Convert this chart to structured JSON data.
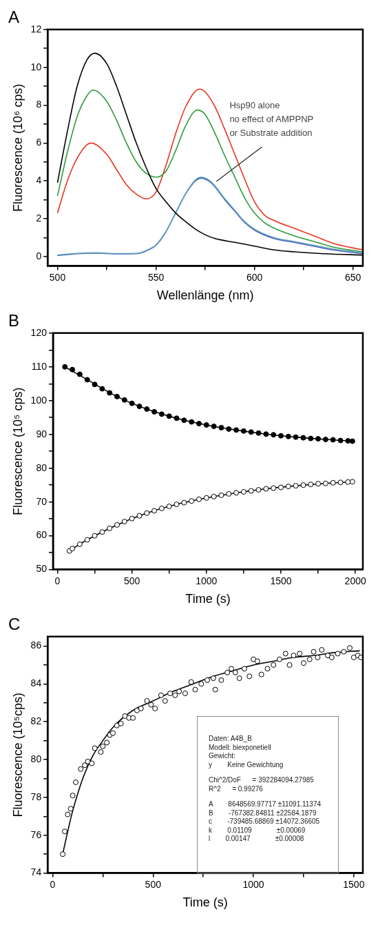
{
  "chart_data": [
    {
      "type": "line",
      "title": "A",
      "xlabel": "Wellenlänge (nm)",
      "ylabel": "Fluorescence (10⁶ cps)",
      "xlim": [
        495,
        655
      ],
      "ylim": [
        -0.5,
        12
      ],
      "xticks": [
        500,
        {
          "value": 525,
          "label": null
        },
        550,
        {
          "value": 575,
          "label": null
        },
        600,
        {
          "value": 625,
          "label": null
        },
        650
      ],
      "yticks": [
        0,
        {
          "value": 1,
          "label": null
        },
        2,
        {
          "value": 3,
          "label": null
        },
        4,
        {
          "value": 5,
          "label": null
        },
        6,
        {
          "value": 7,
          "label": null
        },
        8,
        {
          "value": 9,
          "label": null
        },
        10,
        {
          "value": 11,
          "label": null
        },
        12
      ],
      "grid": false,
      "legend": false,
      "annotations": [
        {
          "text": "Hsp90 alone\nno effect of AMPPNP\nor Substrate addition",
          "x": 580,
          "y": 3.9
        }
      ],
      "series": [
        {
          "color": "#000000",
          "x": [
            500,
            505,
            510,
            515,
            519,
            525,
            530,
            535,
            540,
            545,
            550,
            555,
            560,
            565,
            570,
            575,
            580,
            590,
            600,
            610,
            620,
            635,
            655
          ],
          "values": [
            3.9,
            6.6,
            9.0,
            10.4,
            10.75,
            10.2,
            9.0,
            7.5,
            6.0,
            4.7,
            3.6,
            2.9,
            2.3,
            1.85,
            1.45,
            1.15,
            0.95,
            0.75,
            0.55,
            0.35,
            0.25,
            0.15,
            0.08
          ]
        },
        {
          "color": "#2e9a3a",
          "x": [
            500,
            505,
            510,
            515,
            518,
            525,
            530,
            535,
            540,
            545,
            550,
            555,
            560,
            565,
            571,
            575,
            580,
            585,
            590,
            595,
            600,
            605,
            610,
            620,
            630,
            640,
            655
          ],
          "values": [
            3.2,
            5.5,
            7.4,
            8.5,
            8.8,
            8.2,
            7.2,
            6.0,
            5.0,
            4.4,
            4.2,
            4.5,
            5.6,
            6.9,
            7.75,
            7.5,
            6.5,
            5.3,
            4.2,
            3.1,
            2.3,
            1.8,
            1.5,
            1.1,
            0.8,
            0.5,
            0.25
          ]
        },
        {
          "color": "#e8331e",
          "x": [
            500,
            505,
            510,
            517,
            525,
            530,
            535,
            540,
            545,
            550,
            555,
            560,
            565,
            572,
            575,
            580,
            585,
            590,
            595,
            600,
            605,
            610,
            620,
            630,
            640,
            655
          ],
          "values": [
            2.3,
            4.0,
            5.2,
            6.0,
            5.4,
            4.6,
            3.8,
            3.3,
            3.05,
            3.4,
            4.8,
            6.5,
            7.9,
            8.85,
            8.7,
            7.9,
            6.7,
            5.4,
            4.1,
            2.9,
            2.2,
            1.9,
            1.5,
            1.1,
            0.7,
            0.35
          ]
        },
        {
          "color": "#64a4b8",
          "x": [
            500,
            510,
            520,
            530,
            540,
            545,
            550,
            555,
            560,
            565,
            570,
            573,
            578,
            585,
            590,
            595,
            600,
            610,
            620,
            630,
            640,
            655
          ],
          "values": [
            0.08,
            0.17,
            0.2,
            0.16,
            0.17,
            0.32,
            0.62,
            1.32,
            2.32,
            3.32,
            4.05,
            4.2,
            3.95,
            3.05,
            2.45,
            1.85,
            1.45,
            1.0,
            0.8,
            0.6,
            0.4,
            0.2
          ]
        },
        {
          "color": "#3c56c4",
          "x": [
            500,
            510,
            520,
            530,
            540,
            545,
            550,
            555,
            560,
            565,
            570,
            573,
            578,
            585,
            590,
            595,
            600,
            610,
            620,
            630,
            640,
            655
          ],
          "values": [
            0.05,
            0.15,
            0.18,
            0.14,
            0.15,
            0.3,
            0.6,
            1.3,
            2.3,
            3.3,
            4.0,
            4.15,
            3.9,
            3.0,
            2.4,
            1.8,
            1.4,
            0.95,
            0.75,
            0.55,
            0.35,
            0.15
          ]
        }
      ]
    },
    {
      "type": "scatter",
      "title": "B",
      "xlabel": "Time (s)",
      "ylabel": "Fluorescence (10⁵ cps)",
      "xlim": [
        -30,
        2050
      ],
      "ylim": [
        50,
        120
      ],
      "xticks": [
        0,
        {
          "value": 250,
          "label": null
        },
        500,
        {
          "value": 750,
          "label": null
        },
        1000,
        {
          "value": 1250,
          "label": null
        },
        1500,
        {
          "value": 1750,
          "label": null
        },
        2000
      ],
      "yticks": [
        50,
        {
          "value": 55,
          "label": null
        },
        60,
        {
          "value": 65,
          "label": null
        },
        70,
        {
          "value": 75,
          "label": null
        },
        80,
        {
          "value": 85,
          "label": null
        },
        90,
        {
          "value": 95,
          "label": null
        },
        100,
        {
          "value": 105,
          "label": null
        },
        110,
        {
          "value": 115,
          "label": null
        },
        120
      ],
      "grid": false,
      "legend": false,
      "marker": "circle",
      "series": [
        {
          "color": "#000000",
          "x": [
            50,
            100,
            150,
            200,
            250,
            300,
            350,
            400,
            450,
            500,
            550,
            600,
            650,
            700,
            750,
            800,
            850,
            900,
            950,
            1000,
            1050,
            1100,
            1150,
            1200,
            1250,
            1300,
            1350,
            1400,
            1450,
            1500,
            1550,
            1600,
            1650,
            1700,
            1750,
            1800,
            1850,
            1900,
            1950,
            1980
          ],
          "values": [
            110,
            109.2,
            107.8,
            106.2,
            104.8,
            103.5,
            102.3,
            101.2,
            100.2,
            99.2,
            98.3,
            97.5,
            96.7,
            96.0,
            95.4,
            94.8,
            94.2,
            93.7,
            93.2,
            92.8,
            92.4,
            92.0,
            91.6,
            91.3,
            91.0,
            90.7,
            90.4,
            90.1,
            89.9,
            89.6,
            89.4,
            89.2,
            89.0,
            88.8,
            88.7,
            88.5,
            88.4,
            88.2,
            88.1,
            88.0
          ]
        },
        {
          "color": "#000000",
          "x": [
            80,
            100,
            150,
            200,
            250,
            300,
            350,
            400,
            450,
            500,
            550,
            600,
            650,
            700,
            750,
            800,
            850,
            900,
            950,
            1000,
            1050,
            1100,
            1150,
            1200,
            1250,
            1300,
            1350,
            1400,
            1450,
            1500,
            1550,
            1600,
            1650,
            1700,
            1750,
            1800,
            1850,
            1900,
            1950,
            1980
          ],
          "values": [
            55.5,
            56.2,
            57.5,
            58.8,
            60.0,
            61.1,
            62.2,
            63.2,
            64.2,
            65.1,
            65.9,
            66.7,
            67.4,
            68.1,
            68.7,
            69.3,
            69.8,
            70.3,
            70.8,
            71.2,
            71.6,
            72.0,
            72.4,
            72.7,
            73.0,
            73.3,
            73.6,
            73.9,
            74.1,
            74.3,
            74.6,
            74.8,
            75.0,
            75.2,
            75.4,
            75.5,
            75.7,
            75.8,
            75.9,
            76.0
          ]
        },
        {
          "type": "line",
          "marker": "none",
          "color": "#000000",
          "x": [
            50,
            200,
            400,
            600,
            800,
            1000,
            1200,
            1400,
            1600,
            1800,
            1990
          ],
          "values": [
            110,
            106.2,
            101.2,
            97.5,
            94.8,
            92.8,
            91.3,
            90.1,
            89.2,
            88.5,
            88.0
          ]
        },
        {
          "type": "line",
          "marker": "none",
          "color": "#000000",
          "x": [
            80,
            200,
            400,
            600,
            800,
            1000,
            1200,
            1400,
            1600,
            1800,
            1990
          ],
          "values": [
            55.6,
            58.8,
            63.2,
            66.7,
            69.3,
            71.2,
            72.7,
            73.9,
            74.8,
            75.5,
            76.0
          ]
        }
      ]
    },
    {
      "type": "scatter",
      "title": "C",
      "xlabel": "Time (s)",
      "ylabel": "Fluorescence (10⁵cps)",
      "xlim": [
        -25,
        1545
      ],
      "ylim": [
        74,
        86.5
      ],
      "xticks": [
        0,
        {
          "value": 250,
          "label": null
        },
        500,
        {
          "value": 750,
          "label": null
        },
        1000,
        {
          "value": 1250,
          "label": null
        },
        1500
      ],
      "yticks": [
        74,
        {
          "value": 75,
          "label": null
        },
        76,
        {
          "value": 77,
          "label": null
        },
        78,
        {
          "value": 79,
          "label": null
        },
        80,
        {
          "value": 81,
          "label": null
        },
        82,
        {
          "value": 83,
          "label": null
        },
        84,
        {
          "value": 85,
          "label": null
        },
        86
      ],
      "grid": false,
      "legend": false,
      "marker": "circle",
      "annotations": [
        "Daten: A4B_B",
        "Modell: biexponetiell",
        "Gewicht:",
        "y        Keine Gewichtung",
        "Chi^2/DoF      = 392284094.27985",
        "R^2      = 0.99276",
        "A        8648569.97717 ±11091.11374",
        "B        -767382.84811 ±22584.1879",
        "c        -739485.68869 ±14072.36605",
        "k        0.01109             ±0.00069",
        "l        0.00147             ±0.00008"
      ],
      "series": [
        {
          "color": "#000000",
          "x": [
            50,
            60,
            75,
            90,
            100,
            115,
            140,
            160,
            175,
            195,
            210,
            240,
            250,
            270,
            285,
            300,
            320,
            340,
            360,
            380,
            400,
            420,
            440,
            470,
            490,
            510,
            540,
            560,
            585,
            610,
            630,
            660,
            690,
            710,
            740,
            770,
            800,
            810,
            840,
            870,
            890,
            910,
            930,
            955,
            980,
            1000,
            1020,
            1040,
            1070,
            1100,
            1130,
            1160,
            1180,
            1200,
            1230,
            1250,
            1280,
            1300,
            1320,
            1340,
            1370,
            1390,
            1420,
            1450,
            1480,
            1500,
            1520,
            1535
          ],
          "values": [
            75.0,
            76.2,
            77.1,
            77.4,
            78.1,
            78.8,
            79.5,
            79.7,
            79.9,
            79.8,
            80.6,
            80.4,
            80.7,
            80.9,
            81.3,
            81.4,
            81.8,
            81.9,
            82.3,
            82.2,
            82.2,
            82.6,
            82.7,
            83.1,
            82.9,
            82.7,
            83.4,
            83.1,
            83.5,
            83.4,
            83.6,
            83.5,
            84.1,
            83.7,
            84.0,
            84.2,
            84.3,
            83.7,
            84.2,
            84.6,
            84.8,
            84.6,
            84.3,
            84.8,
            84.4,
            85.3,
            85.2,
            84.5,
            84.8,
            85.0,
            85.3,
            85.6,
            85.0,
            85.5,
            85.6,
            85.1,
            85.3,
            85.7,
            85.4,
            85.8,
            85.5,
            85.4,
            85.6,
            85.7,
            85.9,
            85.4,
            85.5,
            85.4
          ]
        },
        {
          "type": "line",
          "marker": "none",
          "color": "#000000",
          "x": [
            50,
            75,
            100,
            125,
            150,
            200,
            250,
            300,
            400,
            500,
            600,
            700,
            800,
            900,
            1000,
            1100,
            1200,
            1300,
            1400,
            1530
          ],
          "values": [
            75,
            76.2,
            77.3,
            78.2,
            79.0,
            80.2,
            81.0,
            81.7,
            82.6,
            83.1,
            83.6,
            84.0,
            84.4,
            84.7,
            85.0,
            85.2,
            85.4,
            85.5,
            85.65,
            85.75
          ]
        }
      ]
    }
  ]
}
